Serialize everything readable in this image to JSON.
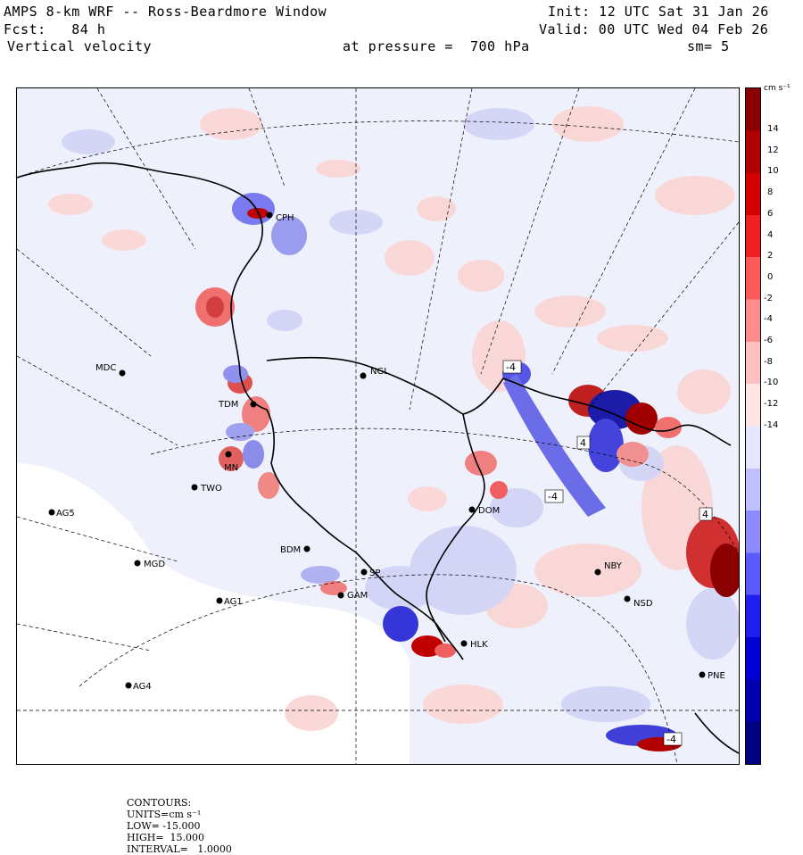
{
  "header": {
    "title": "AMPS 8-km WRF -- Ross-Beardmore Window",
    "init": "Init: 12 UTC Sat 31 Jan 26",
    "fcst": "Fcst:   84 h",
    "valid": "Valid: 00 UTC Wed 04 Feb 26",
    "field": "Vertical velocity",
    "level": "at pressure =  700 hPa",
    "smooth": "sm= 5"
  },
  "colorbar": {
    "unit": "cm s⁻¹",
    "ticks": [
      "14",
      "12",
      "10",
      "8",
      "6",
      "4",
      "2",
      "0",
      "-2",
      "-4",
      "-6",
      "-8",
      "-10",
      "-12",
      "-14"
    ],
    "colors": [
      "#8b0000",
      "#b00000",
      "#d40000",
      "#ee2020",
      "#ff5a5a",
      "#ff8c8c",
      "#ffc0c0",
      "#ffe6e6",
      "#e6e6ff",
      "#c0c0ff",
      "#8c8cff",
      "#5a5aff",
      "#2020ee",
      "#0000d4",
      "#0000b0",
      "#000080"
    ]
  },
  "stations": [
    {
      "id": "CPH",
      "label": "CPH"
    },
    {
      "id": "MDC",
      "label": "MDC"
    },
    {
      "id": "NGL",
      "label": "NGL"
    },
    {
      "id": "TDM",
      "label": "TDM"
    },
    {
      "id": "MN",
      "label": "MN"
    },
    {
      "id": "TWO",
      "label": "TWO"
    },
    {
      "id": "AG5",
      "label": "AG5"
    },
    {
      "id": "MGD",
      "label": "MGD"
    },
    {
      "id": "AG1",
      "label": "AG1"
    },
    {
      "id": "BDM",
      "label": "BDM"
    },
    {
      "id": "SP",
      "label": "SP"
    },
    {
      "id": "GAM",
      "label": "GAM"
    },
    {
      "id": "HLK",
      "label": "HLK"
    },
    {
      "id": "AG4",
      "label": "AG4"
    },
    {
      "id": "DOM",
      "label": "DOM"
    },
    {
      "id": "NBY",
      "label": "NBY"
    },
    {
      "id": "NSD",
      "label": "NSD"
    },
    {
      "id": "PNE",
      "label": "PNE"
    }
  ],
  "contour_labels": [
    "-4",
    "-4",
    "4",
    "4",
    "-4"
  ],
  "footer": {
    "contours": "CONTOURS:",
    "units": "UNITS=cm s⁻¹",
    "low": "LOW= -15.000",
    "high": "HIGH=  15.000",
    "interval": "INTERVAL=   1.0000"
  }
}
